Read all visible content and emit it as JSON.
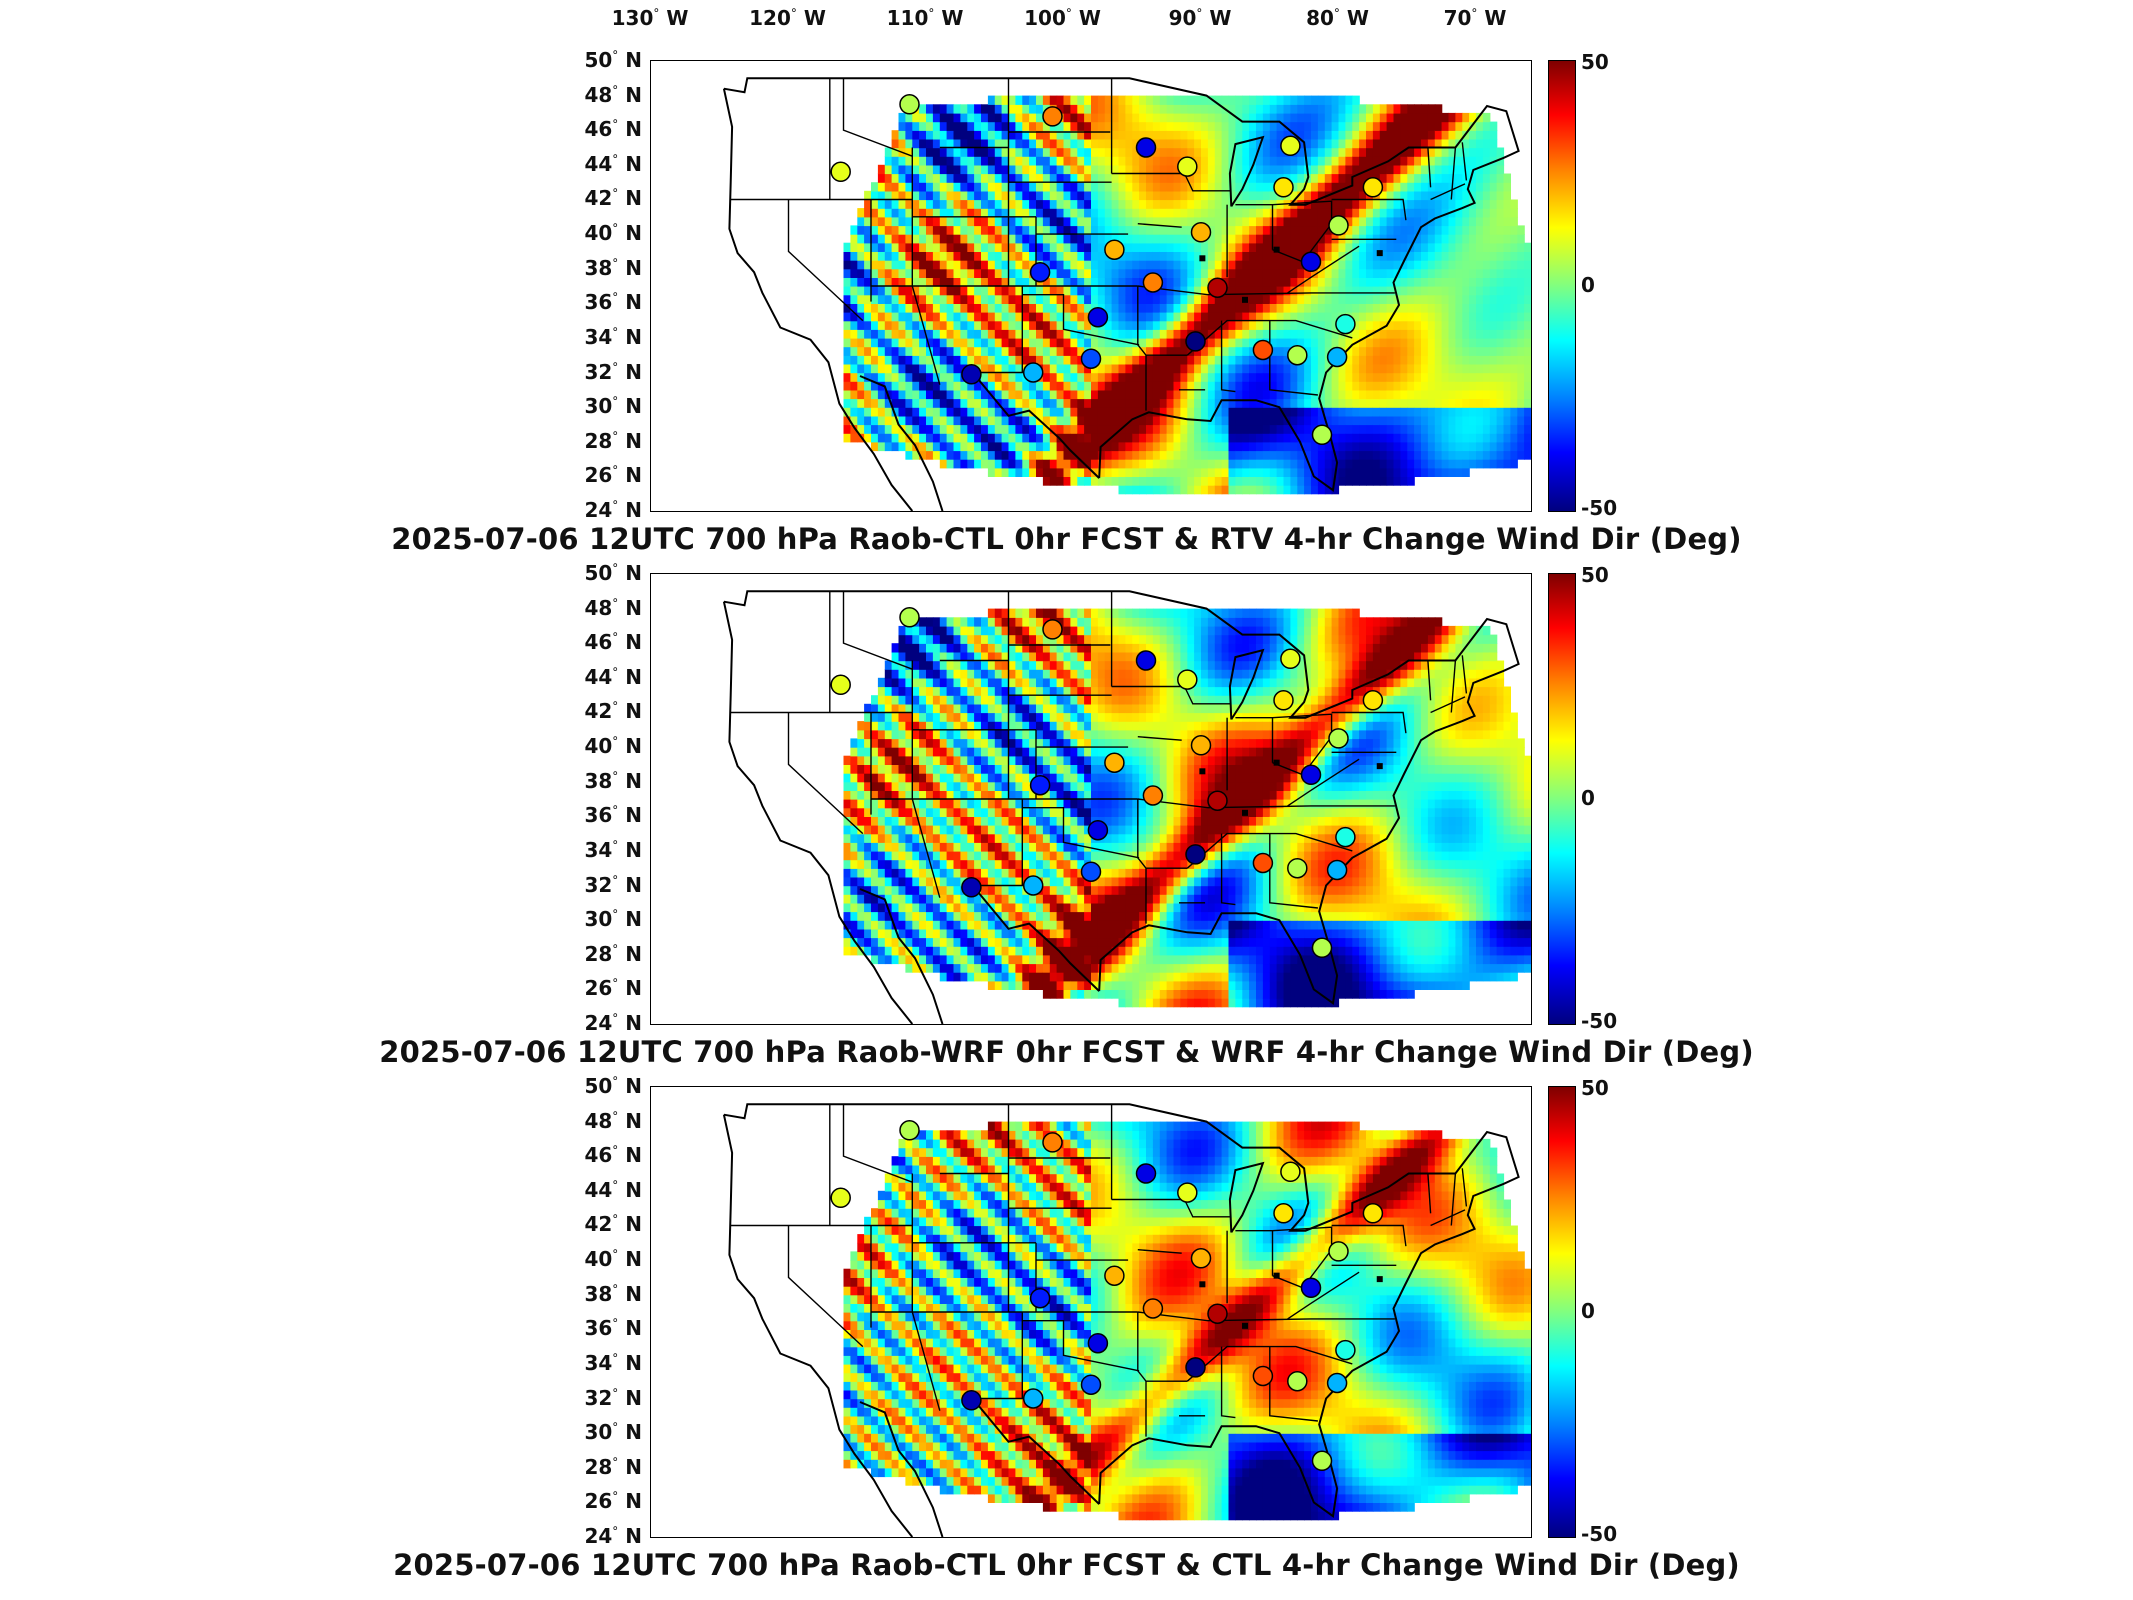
{
  "lon_labels": [
    "130",
    "120",
    "110",
    "100",
    "90",
    "80",
    "70"
  ],
  "lon_suffix": "W",
  "lat_labels": [
    "50",
    "48",
    "46",
    "44",
    "42",
    "40",
    "38",
    "36",
    "34",
    "32",
    "30",
    "28",
    "26",
    "24"
  ],
  "lat_suffix": "N",
  "degree_symbol": "°",
  "colorbar": {
    "max_label": "50",
    "mid_label": "0",
    "min_label": "-50",
    "colors": [
      "#7f0000",
      "#ff0000",
      "#ff8000",
      "#ffff00",
      "#80ff80",
      "#00ffff",
      "#0080ff",
      "#0000ff",
      "#00007f"
    ]
  },
  "panels": [
    {
      "title": "2025-07-06 12UTC 700 hPa Raob-CTL 0hr FCST & RTV 4-hr Change Wind Dir (Deg)"
    },
    {
      "title": "2025-07-06 12UTC 700 hPa Raob-WRF 0hr FCST & WRF 4-hr Change Wind Dir (Deg)"
    },
    {
      "title": "2025-07-06 12UTC 700 hPa Raob-CTL 0hr FCST & CTL 4-hr Change Wind Dir (Deg)"
    }
  ],
  "chart_data": {
    "type": "heatmap",
    "x_range": [
      -130,
      -66
    ],
    "y_range": [
      24,
      50
    ],
    "color_range": [
      -50,
      50
    ],
    "raob_stations": [
      {
        "lon": -111.2,
        "lat": 47.5,
        "value": 5
      },
      {
        "lon": -100.8,
        "lat": 46.8,
        "value": 25
      },
      {
        "lon": -94.0,
        "lat": 45.0,
        "value": -40
      },
      {
        "lon": -83.5,
        "lat": 45.1,
        "value": 10
      },
      {
        "lon": -77.5,
        "lat": 42.7,
        "value": 15
      },
      {
        "lon": -116.2,
        "lat": 43.6,
        "value": 10
      },
      {
        "lon": -84.0,
        "lat": 42.7,
        "value": 15
      },
      {
        "lon": -90.0,
        "lat": 40.1,
        "value": 20
      },
      {
        "lon": -96.3,
        "lat": 39.1,
        "value": 20
      },
      {
        "lon": -101.7,
        "lat": 37.8,
        "value": -35
      },
      {
        "lon": -93.5,
        "lat": 37.2,
        "value": 25
      },
      {
        "lon": -80.0,
        "lat": 40.5,
        "value": 5
      },
      {
        "lon": -82.0,
        "lat": 38.4,
        "value": -40
      },
      {
        "lon": -88.8,
        "lat": 36.9,
        "value": 45
      },
      {
        "lon": -97.5,
        "lat": 35.2,
        "value": -40
      },
      {
        "lon": -90.4,
        "lat": 33.8,
        "value": -50
      },
      {
        "lon": -85.5,
        "lat": 33.3,
        "value": 30
      },
      {
        "lon": -83.0,
        "lat": 33.0,
        "value": 5
      },
      {
        "lon": -98.0,
        "lat": 32.8,
        "value": -30
      },
      {
        "lon": -106.7,
        "lat": 31.9,
        "value": -45
      },
      {
        "lon": -102.2,
        "lat": 32.0,
        "value": -20
      },
      {
        "lon": -80.1,
        "lat": 32.9,
        "value": -20
      },
      {
        "lon": -81.2,
        "lat": 28.4,
        "value": 5
      },
      {
        "lon": -91.0,
        "lat": 43.9,
        "value": 10
      },
      {
        "lon": -79.5,
        "lat": 34.8,
        "value": -10
      }
    ]
  }
}
